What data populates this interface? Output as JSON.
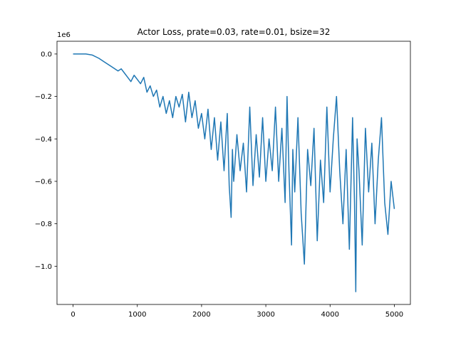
{
  "chart_data": {
    "type": "line",
    "title": "Actor Loss, prate=0.03, rate=0.01, bsize=32",
    "xlabel": "",
    "ylabel": "",
    "y_offset_label": "1e6",
    "xlim": [
      -250,
      5250
    ],
    "ylim": [
      -1.18,
      0.06
    ],
    "x_ticks": [
      0,
      1000,
      2000,
      3000,
      4000,
      5000
    ],
    "x_tick_labels": [
      "0",
      "1000",
      "2000",
      "3000",
      "4000",
      "5000"
    ],
    "y_ticks": [
      0.0,
      -0.2,
      -0.4,
      -0.6,
      -0.8,
      -1.0
    ],
    "y_tick_labels": [
      "0.0",
      "−0.2",
      "−0.4",
      "−0.6",
      "−0.8",
      "−1.0"
    ],
    "grid": false,
    "series": [
      {
        "color": "#1f77b4",
        "x": [
          0,
          100,
          200,
          300,
          400,
          500,
          600,
          700,
          750,
          800,
          850,
          900,
          950,
          1000,
          1050,
          1100,
          1150,
          1200,
          1250,
          1300,
          1350,
          1400,
          1450,
          1500,
          1550,
          1600,
          1650,
          1700,
          1750,
          1800,
          1850,
          1900,
          1950,
          2000,
          2050,
          2100,
          2150,
          2200,
          2250,
          2300,
          2350,
          2400,
          2430,
          2460,
          2480,
          2500,
          2550,
          2600,
          2650,
          2700,
          2750,
          2800,
          2850,
          2900,
          2950,
          3000,
          3050,
          3100,
          3150,
          3200,
          3250,
          3300,
          3330,
          3360,
          3400,
          3420,
          3450,
          3500,
          3550,
          3600,
          3650,
          3700,
          3750,
          3800,
          3850,
          3900,
          3950,
          4000,
          4050,
          4100,
          4150,
          4200,
          4250,
          4300,
          4350,
          4380,
          4400,
          4420,
          4450,
          4500,
          4550,
          4600,
          4650,
          4700,
          4750,
          4800,
          4850,
          4900,
          4950,
          5000
        ],
        "y": [
          0.0,
          0.0,
          0.0,
          -0.005,
          -0.02,
          -0.04,
          -0.06,
          -0.08,
          -0.07,
          -0.09,
          -0.11,
          -0.13,
          -0.1,
          -0.12,
          -0.14,
          -0.11,
          -0.18,
          -0.15,
          -0.2,
          -0.17,
          -0.25,
          -0.2,
          -0.28,
          -0.22,
          -0.3,
          -0.2,
          -0.25,
          -0.19,
          -0.32,
          -0.18,
          -0.3,
          -0.22,
          -0.35,
          -0.28,
          -0.4,
          -0.26,
          -0.45,
          -0.3,
          -0.5,
          -0.32,
          -0.55,
          -0.28,
          -0.62,
          -0.77,
          -0.45,
          -0.6,
          -0.38,
          -0.55,
          -0.42,
          -0.65,
          -0.25,
          -0.62,
          -0.38,
          -0.58,
          -0.3,
          -0.6,
          -0.4,
          -0.55,
          -0.25,
          -0.6,
          -0.35,
          -0.7,
          -0.2,
          -0.55,
          -0.9,
          -0.45,
          -0.65,
          -0.3,
          -0.75,
          -0.99,
          -0.45,
          -0.62,
          -0.35,
          -0.88,
          -0.5,
          -0.7,
          -0.25,
          -0.65,
          -0.4,
          -0.2,
          -0.55,
          -0.8,
          -0.45,
          -0.92,
          -0.3,
          -0.7,
          -1.12,
          -0.4,
          -0.55,
          -0.9,
          -0.35,
          -0.65,
          -0.42,
          -0.8,
          -0.5,
          -0.3,
          -0.7,
          -0.85,
          -0.6,
          -0.73
        ]
      }
    ]
  }
}
